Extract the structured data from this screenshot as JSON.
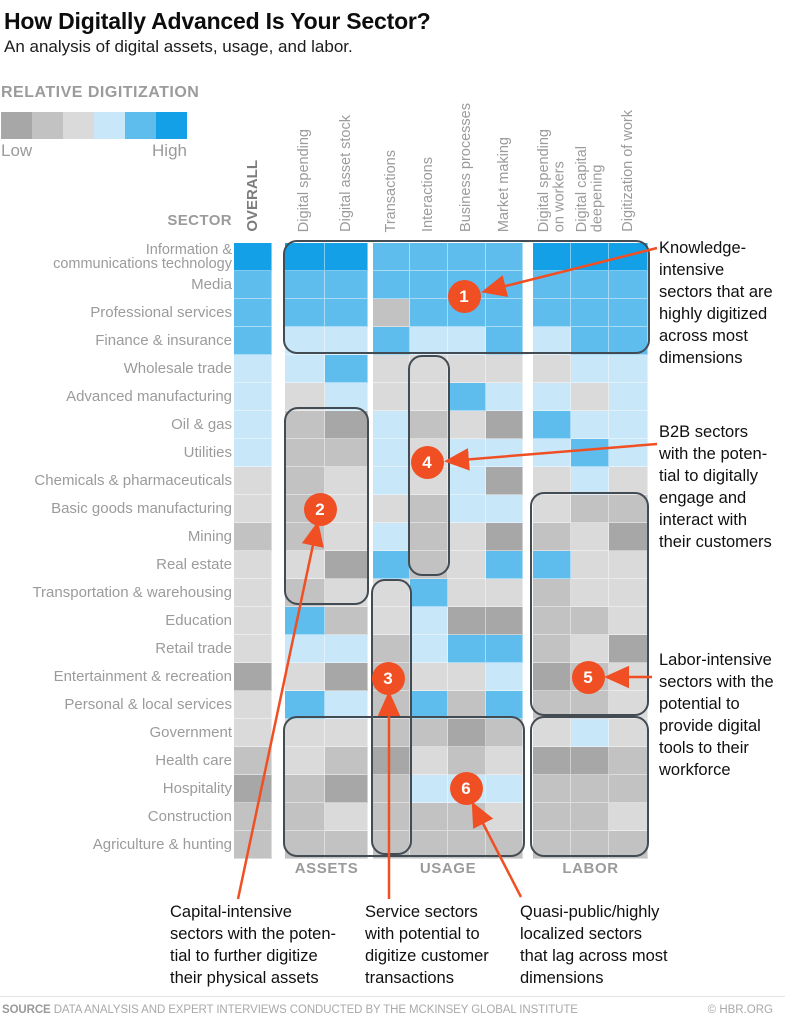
{
  "header": {
    "title": "How Digitally Advanced Is Your Sector?",
    "subtitle": "An analysis of digital assets, usage, and labor."
  },
  "legend": {
    "title": "RELATIVE DIGITIZATION",
    "low_label": "Low",
    "high_label": "High"
  },
  "colors": {
    "levels": [
      "#a7a7a7",
      "#c2c2c2",
      "#dadada",
      "#c8e8fa",
      "#5fbdee",
      "#14a0e7"
    ],
    "annotation_orange": "#f04f23",
    "rect_border": "#434b53"
  },
  "sector_header": "SECTOR",
  "group_labels": {
    "assets": "ASSETS",
    "usage": "USAGE",
    "labor": "LABOR"
  },
  "chart_data": {
    "type": "heatmap",
    "title": "How Digitally Advanced Is Your Sector?",
    "subtitle": "An analysis of digital assets, usage, and labor.",
    "scale_note": "values are relative digitization levels 1 (low) to 6 (high)",
    "columns": [
      "OVERALL",
      "Digital spending",
      "Digital asset stock",
      "Transactions",
      "Interactions",
      "Business processes",
      "Market making",
      "Digital spending\non workers",
      "Digital capital\ndeepening",
      "Digitization of work"
    ],
    "column_groups": [
      {
        "label": "ASSETS",
        "columns": [
          "Digital spending",
          "Digital asset stock"
        ]
      },
      {
        "label": "USAGE",
        "columns": [
          "Transactions",
          "Interactions",
          "Business processes",
          "Market making"
        ]
      },
      {
        "label": "LABOR",
        "columns": [
          "Digital spending on workers",
          "Digital capital deepening",
          "Digitization of work"
        ]
      }
    ],
    "rows": [
      "Information &\ncommunications technology",
      "Media",
      "Professional services",
      "Finance & insurance",
      "Wholesale trade",
      "Advanced manufacturing",
      "Oil & gas",
      "Utilities",
      "Chemicals & pharmaceuticals",
      "Basic goods manufacturing",
      "Mining",
      "Real estate",
      "Transportation & warehousing",
      "Education",
      "Retail trade",
      "Entertainment & recreation",
      "Personal & local services",
      "Government",
      "Health care",
      "Hospitality",
      "Construction",
      "Agriculture & hunting"
    ],
    "values": [
      [
        6,
        6,
        6,
        5,
        5,
        5,
        5,
        6,
        6,
        6
      ],
      [
        5,
        5,
        5,
        5,
        5,
        5,
        5,
        5,
        5,
        5
      ],
      [
        5,
        5,
        5,
        2,
        5,
        5,
        5,
        5,
        5,
        5
      ],
      [
        5,
        4,
        4,
        5,
        4,
        4,
        5,
        4,
        5,
        5
      ],
      [
        4,
        4,
        5,
        3,
        3,
        3,
        3,
        3,
        4,
        4
      ],
      [
        4,
        3,
        4,
        3,
        3,
        5,
        4,
        4,
        3,
        4
      ],
      [
        4,
        2,
        1,
        4,
        2,
        3,
        1,
        5,
        4,
        4
      ],
      [
        4,
        2,
        2,
        4,
        3,
        4,
        4,
        4,
        5,
        4
      ],
      [
        3,
        2,
        3,
        4,
        3,
        4,
        1,
        3,
        4,
        3
      ],
      [
        3,
        2,
        3,
        3,
        2,
        4,
        4,
        3,
        2,
        2
      ],
      [
        2,
        2,
        3,
        4,
        2,
        3,
        1,
        2,
        3,
        1
      ],
      [
        3,
        3,
        1,
        5,
        2,
        3,
        5,
        5,
        3,
        3
      ],
      [
        3,
        2,
        3,
        3,
        5,
        3,
        3,
        2,
        3,
        3
      ],
      [
        3,
        5,
        2,
        3,
        4,
        1,
        1,
        2,
        2,
        3
      ],
      [
        3,
        4,
        4,
        2,
        4,
        5,
        5,
        2,
        3,
        1
      ],
      [
        1,
        3,
        1,
        2,
        3,
        3,
        4,
        1,
        2,
        3
      ],
      [
        3,
        5,
        4,
        2,
        5,
        2,
        5,
        2,
        2,
        3
      ],
      [
        3,
        3,
        3,
        2,
        2,
        1,
        2,
        3,
        4,
        3
      ],
      [
        2,
        3,
        2,
        1,
        3,
        2,
        3,
        1,
        1,
        2
      ],
      [
        1,
        2,
        1,
        2,
        4,
        4,
        4,
        2,
        2,
        2
      ],
      [
        2,
        2,
        3,
        2,
        2,
        2,
        3,
        2,
        2,
        3
      ],
      [
        2,
        2,
        2,
        2,
        2,
        2,
        2,
        2,
        2,
        2
      ]
    ]
  },
  "annotations": [
    {
      "number": "1",
      "text": "Knowledge-\nintensive\nsectors that are\nhighly digitized\nacross most\ndimensions"
    },
    {
      "number": "2",
      "text": "Capital-intensive\nsectors with the poten-\ntial to further digitize\ntheir physical assets"
    },
    {
      "number": "3",
      "text": "Service sectors\nwith potential to\ndigitize customer\ntransactions"
    },
    {
      "number": "4",
      "text": "B2B sectors\nwith the poten-\ntial to digitally\nengage and\ninteract with\ntheir customers"
    },
    {
      "number": "5",
      "text": "Labor-intensive\nsectors with the\npotential to\nprovide digital\ntools to their\nworkforce"
    },
    {
      "number": "6",
      "text": "Quasi-public/highly\nlocalized sectors\nthat lag across most\ndimensions"
    }
  ],
  "footer": {
    "source_label": "SOURCE",
    "source_text": "DATA ANALYSIS AND EXPERT INTERVIEWS CONDUCTED BY THE MCKINSEY GLOBAL INSTITUTE",
    "credit": "© HBR.ORG"
  }
}
